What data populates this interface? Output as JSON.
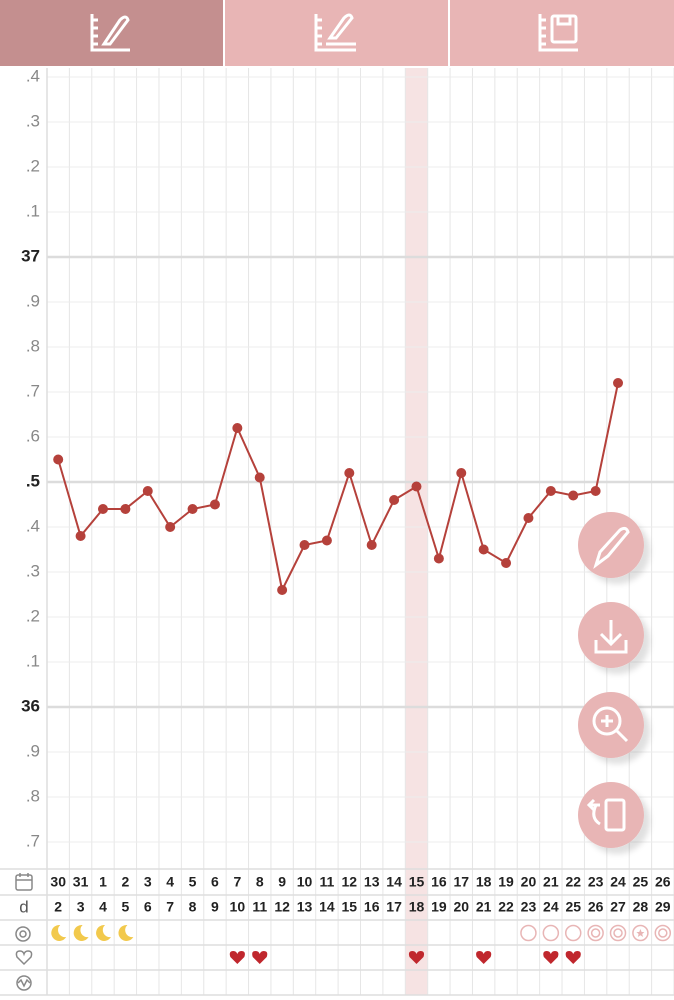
{
  "chart_data": {
    "type": "line",
    "day_label": "d",
    "dates": [
      "30",
      "31",
      "1",
      "2",
      "3",
      "4",
      "5",
      "6",
      "7",
      "8",
      "9",
      "10",
      "11",
      "12",
      "13",
      "14",
      "15",
      "16",
      "17",
      "18",
      "19",
      "20",
      "21",
      "22",
      "23",
      "24",
      "25",
      "26"
    ],
    "date_colors": [
      null,
      "#4a90c8",
      "#d9534f",
      null,
      null,
      null,
      null,
      null,
      "#4a90c8",
      "#d9534f",
      null,
      null,
      null,
      null,
      null,
      "#4a90c8",
      "#d9534f",
      null,
      null,
      null,
      null,
      null,
      "#4a90c8",
      "#d9534f",
      null,
      null,
      null,
      null
    ],
    "categories": [
      "2",
      "3",
      "4",
      "5",
      "6",
      "7",
      "8",
      "9",
      "10",
      "11",
      "12",
      "13",
      "14",
      "15",
      "16",
      "17",
      "18",
      "19",
      "20",
      "21",
      "22",
      "23",
      "24",
      "25",
      "26",
      "27",
      "28",
      "29"
    ],
    "series": [
      {
        "color": "#b5413b",
        "values": [
          36.55,
          36.38,
          36.44,
          36.44,
          36.48,
          36.4,
          36.44,
          36.45,
          36.62,
          36.51,
          36.26,
          36.36,
          36.37,
          36.52,
          36.36,
          36.46,
          36.49,
          36.33,
          36.52,
          36.35,
          36.32,
          36.42,
          36.48,
          36.47,
          36.48,
          36.72,
          null,
          null
        ]
      }
    ],
    "ylim": [
      35.64,
      37.42
    ],
    "yticks": [
      {
        "value": 37.4,
        "label": ".4"
      },
      {
        "value": 37.3,
        "label": ".3"
      },
      {
        "value": 37.2,
        "label": ".2"
      },
      {
        "value": 37.1,
        "label": ".1"
      },
      37,
      {
        "value": 36.9,
        "label": ".9"
      },
      {
        "value": 36.8,
        "label": ".8"
      },
      {
        "value": 36.7,
        "label": ".7"
      },
      {
        "value": 36.6,
        "label": ".6"
      },
      {
        "value": 36.5,
        "label": ".5"
      },
      {
        "value": 36.4,
        "label": ".4"
      },
      {
        "value": 36.3,
        "label": ".3"
      },
      {
        "value": 36.2,
        "label": ".2"
      },
      {
        "value": 36.1,
        "label": ".1"
      },
      36,
      {
        "value": 35.9,
        "label": ".9"
      },
      {
        "value": 35.8,
        "label": ".8"
      },
      {
        "value": 35.7,
        "label": ".7"
      }
    ],
    "major_yticks": [
      37,
      36.5,
      36
    ],
    "highlight_index": 16,
    "symbols_row": [
      "moon",
      "moon",
      "moon",
      "moon",
      null,
      null,
      null,
      null,
      null,
      null,
      null,
      null,
      null,
      null,
      null,
      null,
      null,
      null,
      null,
      null,
      null,
      "circle",
      "circle",
      "circle",
      "double-circle",
      "double-circle",
      "star-circle",
      "double-circle"
    ],
    "hearts_row": [
      null,
      null,
      null,
      null,
      null,
      null,
      null,
      null,
      "heart",
      "heart",
      null,
      null,
      null,
      null,
      null,
      null,
      "heart",
      null,
      null,
      "heart",
      null,
      null,
      "heart",
      "heart",
      null,
      null,
      null,
      null
    ],
    "grid": true
  }
}
